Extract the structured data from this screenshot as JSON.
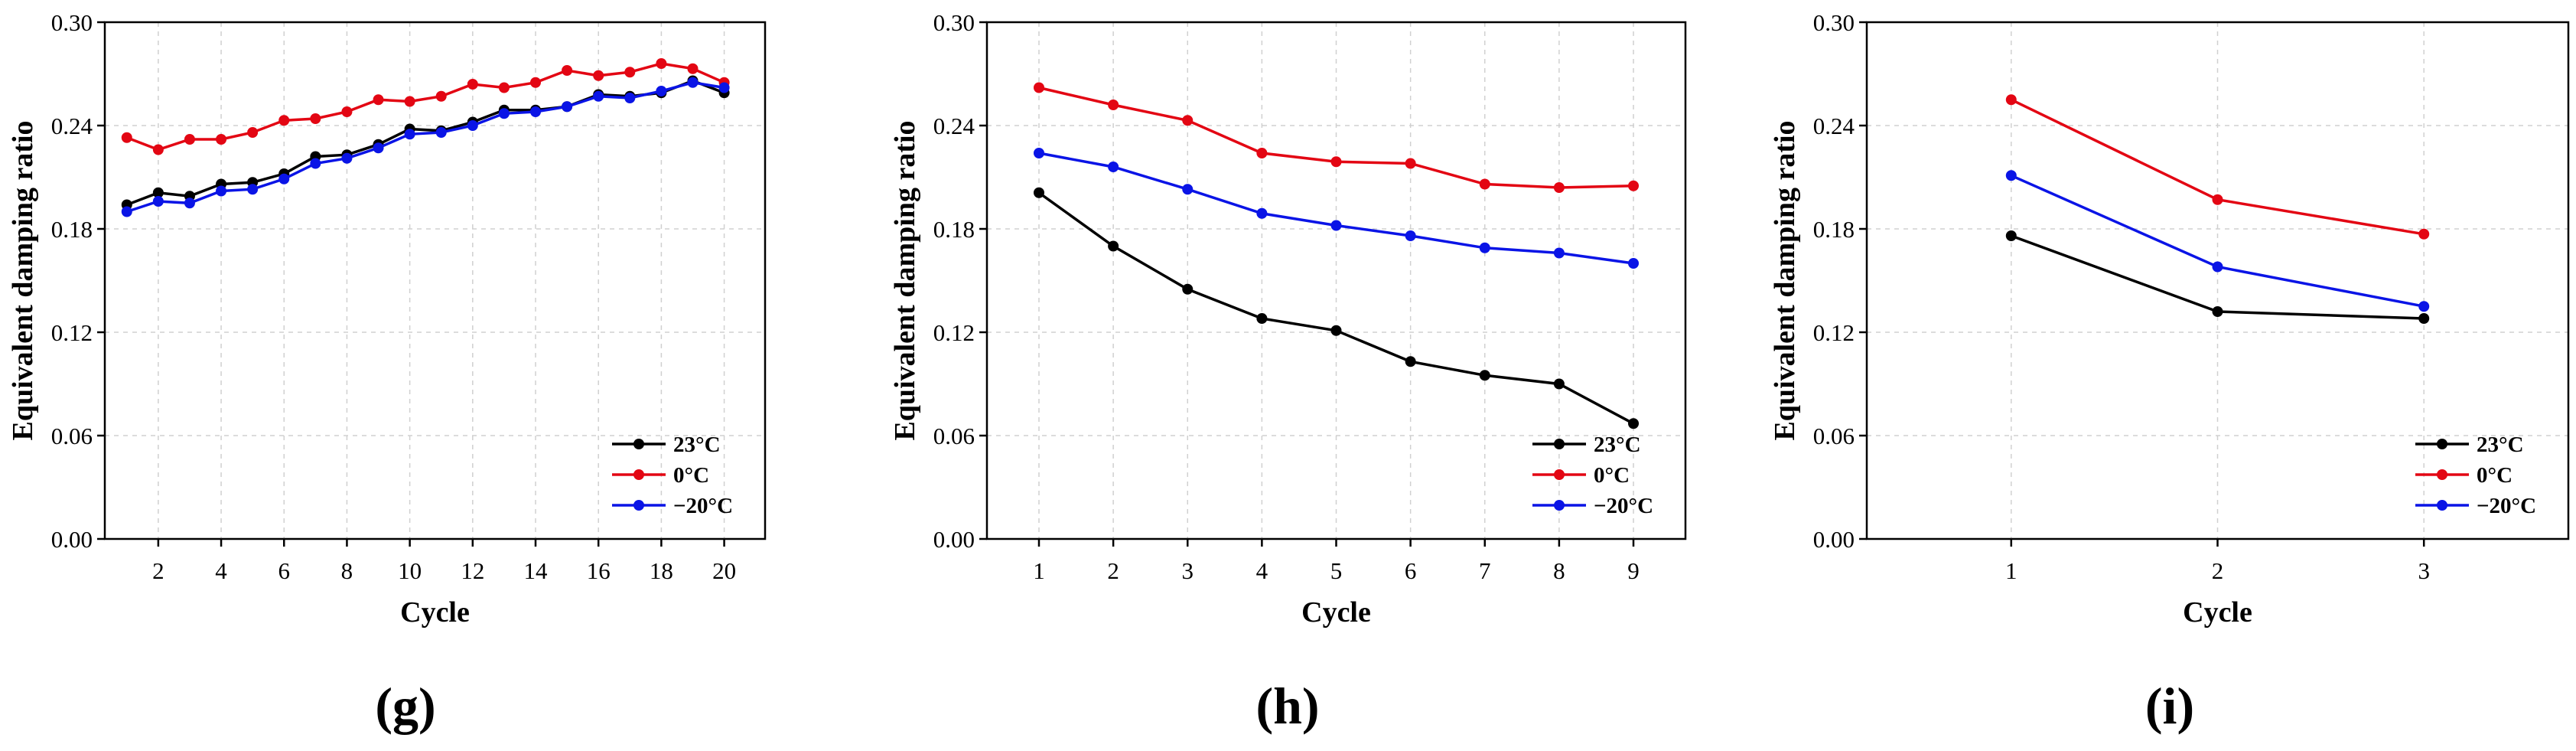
{
  "colors": {
    "s23": "#000000",
    "s0": "#e30613",
    "sm20": "#0a14e6",
    "grid": "#d0d0d0"
  },
  "chart_data": [
    {
      "type": "line",
      "panel_label": "(g)",
      "xlabel": "Cycle",
      "ylabel": "Equivalent damping ratio",
      "xlim": [
        0.3,
        21.3
      ],
      "ylim": [
        0,
        0.3
      ],
      "x_ticks": [
        2,
        4,
        6,
        8,
        10,
        12,
        14,
        16,
        18,
        20
      ],
      "y_ticks": [
        "0.00",
        "0.06",
        "0.12",
        "0.18",
        "0.24",
        "0.30"
      ],
      "legend_position": "bottom-right",
      "x": [
        1,
        2,
        3,
        4,
        5,
        6,
        7,
        8,
        9,
        10,
        11,
        12,
        13,
        14,
        15,
        16,
        17,
        18,
        19,
        20
      ],
      "series": [
        {
          "name": "23°C",
          "color": "#000000",
          "values": [
            0.194,
            0.201,
            0.199,
            0.206,
            0.207,
            0.212,
            0.222,
            0.223,
            0.229,
            0.238,
            0.237,
            0.242,
            0.249,
            0.249,
            0.251,
            0.258,
            0.257,
            0.259,
            0.266,
            0.259
          ]
        },
        {
          "name": "0°C",
          "color": "#e30613",
          "values": [
            0.233,
            0.226,
            0.232,
            0.232,
            0.236,
            0.243,
            0.244,
            0.248,
            0.255,
            0.254,
            0.257,
            0.264,
            0.262,
            0.265,
            0.272,
            0.269,
            0.271,
            0.276,
            0.273,
            0.265
          ]
        },
        {
          "name": "−20°C",
          "color": "#0a14e6",
          "values": [
            0.19,
            0.196,
            0.195,
            0.202,
            0.203,
            0.209,
            0.218,
            0.221,
            0.227,
            0.235,
            0.236,
            0.24,
            0.247,
            0.248,
            0.251,
            0.257,
            0.256,
            0.26,
            0.265,
            0.262
          ]
        }
      ]
    },
    {
      "type": "line",
      "panel_label": "(h)",
      "xlabel": "Cycle",
      "ylabel": "Equivalent damping ratio",
      "xlim": [
        0.3,
        9.7
      ],
      "ylim": [
        0,
        0.3
      ],
      "x_ticks": [
        1,
        2,
        3,
        4,
        5,
        6,
        7,
        8,
        9
      ],
      "y_ticks": [
        "0.00",
        "0.06",
        "0.12",
        "0.18",
        "0.24",
        "0.30"
      ],
      "legend_position": "bottom-right",
      "x": [
        1,
        2,
        3,
        4,
        5,
        6,
        7,
        8,
        9
      ],
      "series": [
        {
          "name": "23°C",
          "color": "#000000",
          "values": [
            0.201,
            0.17,
            0.145,
            0.128,
            0.121,
            0.103,
            0.095,
            0.09,
            0.067
          ]
        },
        {
          "name": "0°C",
          "color": "#e30613",
          "values": [
            0.262,
            0.252,
            0.243,
            0.224,
            0.219,
            0.218,
            0.206,
            0.204,
            0.205
          ]
        },
        {
          "name": "−20°C",
          "color": "#0a14e6",
          "values": [
            0.224,
            0.216,
            0.203,
            0.189,
            0.182,
            0.176,
            0.169,
            0.166,
            0.16
          ]
        }
      ]
    },
    {
      "type": "line",
      "panel_label": "(i)",
      "xlabel": "Cycle",
      "ylabel": "Equivalent damping ratio",
      "xlim": [
        0.3,
        3.7
      ],
      "ylim": [
        0,
        0.3
      ],
      "x_ticks": [
        1,
        2,
        3
      ],
      "y_ticks": [
        "0.00",
        "0.06",
        "0.12",
        "0.18",
        "0.24",
        "0.30"
      ],
      "legend_position": "bottom-right",
      "x": [
        1,
        2,
        3
      ],
      "series": [
        {
          "name": "23°C",
          "color": "#000000",
          "values": [
            0.176,
            0.132,
            0.128
          ]
        },
        {
          "name": "0°C",
          "color": "#e30613",
          "values": [
            0.255,
            0.197,
            0.177
          ]
        },
        {
          "name": "−20°C",
          "color": "#0a14e6",
          "values": [
            0.211,
            0.158,
            0.135
          ]
        }
      ]
    }
  ]
}
